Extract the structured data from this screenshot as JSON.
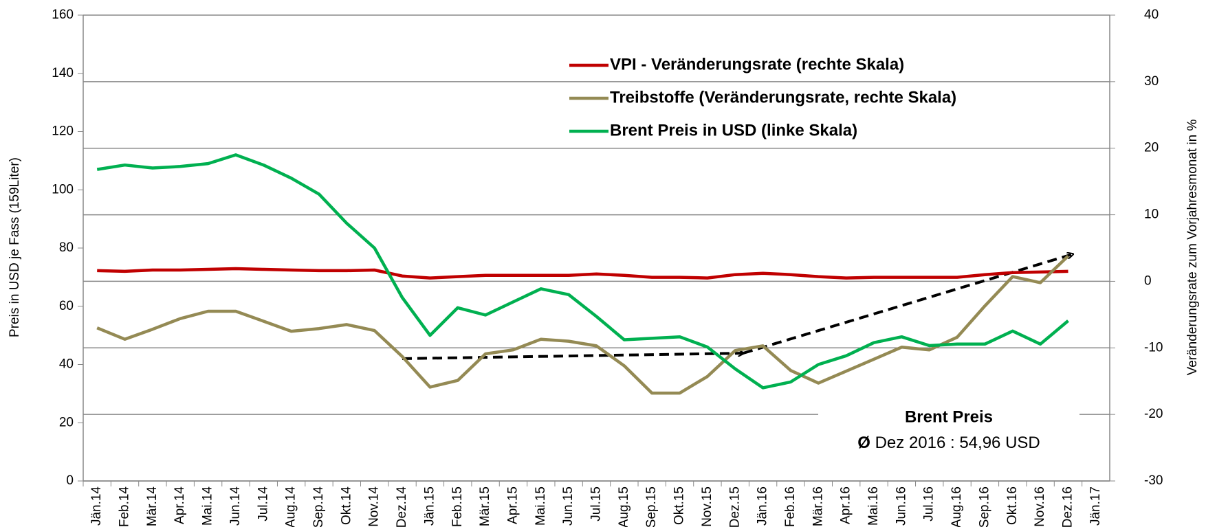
{
  "chart_data": {
    "type": "line",
    "y_label": "Preis in USD je Fass  (159Liter)",
    "y2_label": "Veränderungsrate zum Vorjahresmonat in %",
    "categories": [
      "Jän.14",
      "Feb.14",
      "Mär.14",
      "Apr.14",
      "Mai.14",
      "Jun.14",
      "Jul.14",
      "Aug.14",
      "Sep.14",
      "Okt.14",
      "Nov.14",
      "Dez.14",
      "Jän.15",
      "Feb.15",
      "Mär.15",
      "Apr.15",
      "Mai.15",
      "Jun.15",
      "Jul.15",
      "Aug.15",
      "Sep.15",
      "Okt.15",
      "Nov.15",
      "Dez.15",
      "Jän.16",
      "Feb.16",
      "Mär.16",
      "Apr.16",
      "Mai.16",
      "Jun.16",
      "Jul.16",
      "Aug.16",
      "Sep.16",
      "Okt.16",
      "Nov.16",
      "Dez.16",
      "Jän.17"
    ],
    "series": [
      {
        "name": "VPI - Veränderungsrate (rechte Skala)",
        "color": "#c00000",
        "axis": "y2",
        "values": [
          1.6,
          1.5,
          1.7,
          1.7,
          1.8,
          1.9,
          1.8,
          1.7,
          1.6,
          1.6,
          1.7,
          0.8,
          0.5,
          0.7,
          0.9,
          0.9,
          0.9,
          0.9,
          1.1,
          0.9,
          0.6,
          0.6,
          0.5,
          1.0,
          1.2,
          1.0,
          0.7,
          0.5,
          0.6,
          0.6,
          0.6,
          0.6,
          1.0,
          1.3,
          1.4,
          1.5,
          null
        ]
      },
      {
        "name": "Treibstoffe (Veränderungsrate, rechte Skala)",
        "color": "#948a54",
        "axis": "y2",
        "values": [
          -7,
          -8.7,
          -7.2,
          -5.6,
          -4.5,
          -4.5,
          -6,
          -7.5,
          -7.1,
          -6.5,
          -7.4,
          -11.3,
          -15.9,
          -14.9,
          -10.9,
          -10.3,
          -8.7,
          -9,
          -9.7,
          -12.7,
          -16.8,
          -16.8,
          -14.3,
          -10.4,
          -9.7,
          -13.4,
          -15.3,
          -13.5,
          -11.7,
          -9.9,
          -10.3,
          -8.4,
          -3.7,
          0.7,
          -0.2,
          3.8,
          null
        ]
      },
      {
        "name": "Brent Preis in USD (linke Skala)",
        "color": "#00b050",
        "values": [
          107,
          108.5,
          107.5,
          108,
          109,
          112,
          108.5,
          104,
          98.5,
          88.5,
          80,
          63,
          50,
          59.5,
          57,
          61.5,
          66,
          64,
          56.5,
          48.5,
          49,
          49.5,
          46,
          38.5,
          32,
          34,
          40,
          43,
          47.5,
          49.5,
          46.5,
          47,
          47,
          51.5,
          47,
          55,
          null
        ]
      }
    ],
    "ylim": [
      0,
      160
    ],
    "yticks": [
      0,
      20,
      40,
      60,
      80,
      100,
      120,
      140,
      160
    ],
    "y2lim": [
      -30,
      40
    ],
    "y2ticks": [
      -30,
      -20,
      -10,
      0,
      10,
      20,
      30,
      40
    ],
    "grid": true,
    "annotation_title": "Brent Preis",
    "annotation_symbol": "Ø",
    "annotation_text": "Dez 2016 :  54,96 USD"
  }
}
